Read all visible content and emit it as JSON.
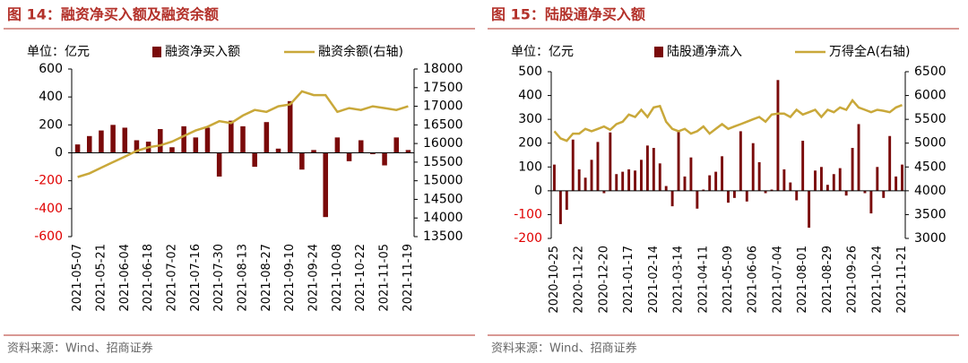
{
  "chart_data": [
    {
      "type": "bar-line",
      "title": "图 14：融资净买入额及融资余额",
      "unit_label": "单位：亿元",
      "source": "资料来源：Wind、招商证券",
      "categories": [
        "2021-05-07",
        null,
        "2021-05-21",
        null,
        "2021-06-04",
        null,
        "2021-06-18",
        null,
        "2021-07-02",
        null,
        "2021-07-16",
        null,
        "2021-07-30",
        null,
        "2021-08-13",
        null,
        "2021-08-27",
        null,
        "2021-09-10",
        null,
        "2021-09-24",
        null,
        "2021-10-08",
        null,
        "2021-10-22",
        null,
        "2021-11-05",
        null,
        "2021-11-19"
      ],
      "series": [
        {
          "name": "融资净买入额",
          "type": "bar",
          "color": "#7a0a0a",
          "values": [
            60,
            120,
            160,
            200,
            180,
            90,
            80,
            170,
            40,
            190,
            110,
            180,
            -170,
            230,
            190,
            -100,
            220,
            30,
            370,
            -120,
            20,
            -460,
            110,
            -60,
            90,
            -10,
            -90,
            110,
            20
          ]
        },
        {
          "name": "融资余额(右轴)",
          "type": "line",
          "axis": "y2",
          "color": "#c9a83a",
          "values": [
            15100,
            15200,
            15350,
            15500,
            15650,
            15800,
            15900,
            15950,
            16050,
            16200,
            16350,
            16450,
            16600,
            16550,
            16750,
            16900,
            16850,
            17000,
            17050,
            17400,
            17300,
            17300,
            16850,
            16950,
            16900,
            17000,
            16950,
            16900,
            17000
          ]
        }
      ],
      "ylim": [
        -600,
        600
      ],
      "yticks": [
        -600,
        -400,
        -200,
        0,
        200,
        400,
        600
      ],
      "y2lim": [
        13500,
        18000
      ],
      "y2ticks": [
        13500,
        14000,
        14500,
        15000,
        15500,
        16000,
        16500,
        17000,
        17500,
        18000
      ],
      "negative_tick_color": "#e00000"
    },
    {
      "type": "bar-line",
      "title": "图 15：陆股通净买入额",
      "unit_label": "单位：亿元",
      "source": "资料来源：Wind、招商证券",
      "categories": [
        "2020-10-25",
        null,
        null,
        null,
        "2020-11-22",
        null,
        null,
        null,
        "2020-12-20",
        null,
        null,
        null,
        "2021-01-17",
        null,
        null,
        null,
        "2021-02-14",
        null,
        null,
        null,
        "2021-03-14",
        null,
        null,
        null,
        "2021-04-11",
        null,
        null,
        null,
        "2021-05-09",
        null,
        null,
        null,
        "2021-06-06",
        null,
        null,
        null,
        "2021-07-04",
        null,
        null,
        null,
        "2021-08-01",
        null,
        null,
        null,
        "2021-08-29",
        null,
        null,
        null,
        "2021-09-26",
        null,
        null,
        null,
        "2021-10-24",
        null,
        null,
        null,
        "2021-11-21"
      ],
      "series": [
        {
          "name": "陆股通净流入",
          "type": "bar",
          "color": "#7a0a0a",
          "values": [
            110,
            -140,
            -80,
            215,
            90,
            55,
            130,
            205,
            -10,
            245,
            70,
            80,
            90,
            85,
            130,
            190,
            180,
            115,
            20,
            -65,
            250,
            60,
            140,
            -75,
            5,
            65,
            80,
            145,
            -50,
            -30,
            250,
            -45,
            200,
            120,
            -10,
            5,
            465,
            90,
            35,
            -40,
            210,
            -155,
            85,
            100,
            25,
            70,
            95,
            -20,
            180,
            280,
            -10,
            -95,
            100,
            -30,
            230,
            60,
            110
          ]
        },
        {
          "name": "万得全A(右轴)",
          "type": "line",
          "axis": "y2",
          "color": "#c9a83a",
          "values": [
            5250,
            5100,
            5050,
            5200,
            5200,
            5300,
            5250,
            5300,
            5350,
            5280,
            5400,
            5450,
            5600,
            5550,
            5700,
            5550,
            5750,
            5780,
            5450,
            5300,
            5250,
            5300,
            5200,
            5250,
            5350,
            5200,
            5300,
            5400,
            5300,
            5350,
            5400,
            5450,
            5500,
            5550,
            5450,
            5600,
            5620,
            5620,
            5550,
            5700,
            5600,
            5650,
            5700,
            5550,
            5700,
            5650,
            5750,
            5700,
            5900,
            5750,
            5700,
            5650,
            5700,
            5680,
            5650,
            5750,
            5800
          ]
        }
      ],
      "ylim": [
        -200,
        500
      ],
      "yticks": [
        -200,
        -100,
        0,
        100,
        200,
        300,
        400,
        500
      ],
      "y2lim": [
        3000,
        6500
      ],
      "y2ticks": [
        3000,
        3500,
        4000,
        4500,
        5000,
        5500,
        6000,
        6500
      ],
      "negative_tick_color": "#e00000"
    }
  ]
}
